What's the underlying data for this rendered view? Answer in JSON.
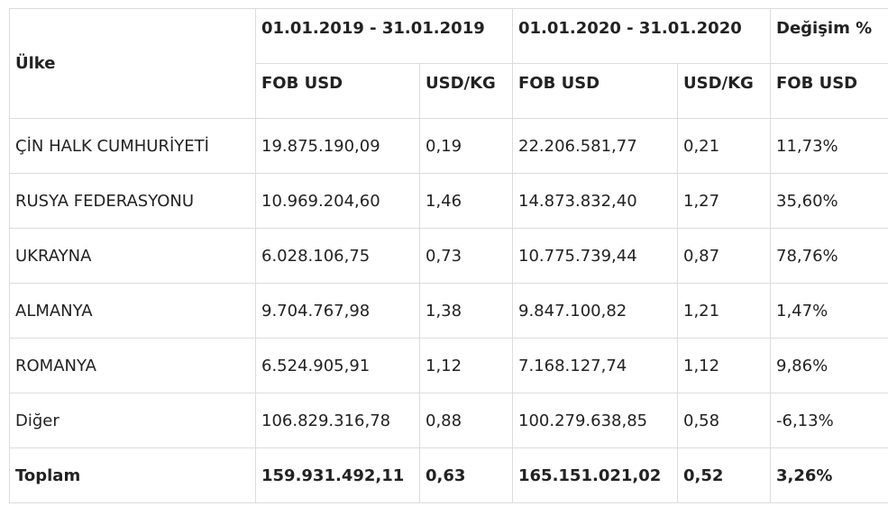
{
  "table": {
    "header": {
      "country": "Ülke",
      "period_2019": "01.01.2019 - 31.01.2019",
      "period_2020": "01.01.2020 - 31.01.2020",
      "change": "Değişim %",
      "fob_usd": "FOB USD",
      "usd_kg": "USD/KG"
    },
    "rows": [
      {
        "country": "ÇİN HALK CUMHURİYETİ",
        "fob2019": "19.875.190,09",
        "kg2019": "0,19",
        "fob2020": "22.206.581,77",
        "kg2020": "0,21",
        "change": "11,73%"
      },
      {
        "country": "RUSYA FEDERASYONU",
        "fob2019": "10.969.204,60",
        "kg2019": "1,46",
        "fob2020": "14.873.832,40",
        "kg2020": "1,27",
        "change": "35,60%"
      },
      {
        "country": "UKRAYNA",
        "fob2019": "6.028.106,75",
        "kg2019": "0,73",
        "fob2020": "10.775.739,44",
        "kg2020": "0,87",
        "change": "78,76%"
      },
      {
        "country": "ALMANYA",
        "fob2019": "9.704.767,98",
        "kg2019": "1,38",
        "fob2020": "9.847.100,82",
        "kg2020": "1,21",
        "change": "1,47%"
      },
      {
        "country": "ROMANYA",
        "fob2019": "6.524.905,91",
        "kg2019": "1,12",
        "fob2020": "7.168.127,74",
        "kg2020": "1,12",
        "change": "9,86%"
      },
      {
        "country": "Diğer",
        "fob2019": "106.829.316,78",
        "kg2019": "0,88",
        "fob2020": "100.279.638,85",
        "kg2020": "0,58",
        "change": "-6,13%"
      }
    ],
    "total": {
      "country": "Toplam",
      "fob2019": "159.931.492,11",
      "kg2019": "0,63",
      "fob2020": "165.151.021,02",
      "kg2020": "0,52",
      "change": "3,26%"
    }
  }
}
